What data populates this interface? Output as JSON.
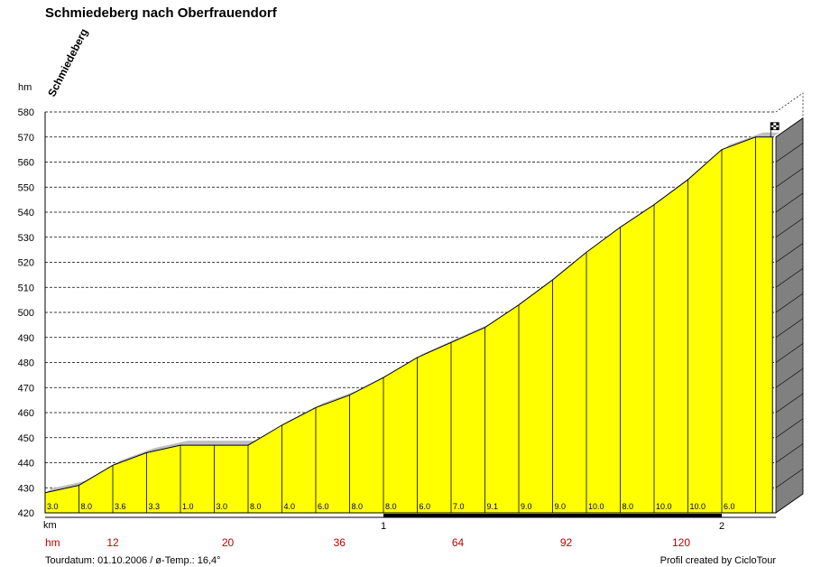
{
  "chart_data": {
    "type": "area",
    "title": "Schmiedeberg nach Oberfrauendorf",
    "start_label": "Schmiedeberg",
    "y_unit": "hm",
    "x_unit": "km",
    "ylim": [
      420,
      580
    ],
    "xlim": [
      0,
      2.16
    ],
    "y_ticks": [
      420,
      430,
      440,
      450,
      460,
      470,
      480,
      490,
      500,
      510,
      520,
      530,
      540,
      550,
      560,
      570,
      580
    ],
    "x_ticks": [
      {
        "value": 1,
        "label": "1"
      },
      {
        "value": 2,
        "label": "2"
      }
    ],
    "grid": true,
    "profile": {
      "x": [
        0,
        0.1,
        0.2,
        0.3,
        0.4,
        0.5,
        0.6,
        0.7,
        0.8,
        0.9,
        1.0,
        1.1,
        1.2,
        1.3,
        1.4,
        1.5,
        1.6,
        1.7,
        1.8,
        1.9,
        2.0,
        2.1,
        2.15
      ],
      "y": [
        428,
        431,
        439,
        444,
        447,
        447,
        447,
        455,
        462,
        467,
        474,
        482,
        488,
        494,
        503,
        513,
        524,
        534,
        543,
        553,
        565,
        570,
        570
      ]
    },
    "segments": [
      {
        "x0": 0.0,
        "x1": 0.1,
        "gradient": "3.0"
      },
      {
        "x0": 0.1,
        "x1": 0.2,
        "gradient": "8.0"
      },
      {
        "x0": 0.2,
        "x1": 0.3,
        "gradient": "3.6"
      },
      {
        "x0": 0.3,
        "x1": 0.4,
        "gradient": "3.3"
      },
      {
        "x0": 0.4,
        "x1": 0.5,
        "gradient": "1.0"
      },
      {
        "x0": 0.5,
        "x1": 0.6,
        "gradient": "3.0"
      },
      {
        "x0": 0.6,
        "x1": 0.7,
        "gradient": "8.0"
      },
      {
        "x0": 0.7,
        "x1": 0.8,
        "gradient": "4.0"
      },
      {
        "x0": 0.8,
        "x1": 0.9,
        "gradient": "6.0"
      },
      {
        "x0": 0.9,
        "x1": 1.0,
        "gradient": "8.0"
      },
      {
        "x0": 1.0,
        "x1": 1.1,
        "gradient": "8.0"
      },
      {
        "x0": 1.1,
        "x1": 1.2,
        "gradient": "6.0"
      },
      {
        "x0": 1.2,
        "x1": 1.3,
        "gradient": "7.0"
      },
      {
        "x0": 1.3,
        "x1": 1.4,
        "gradient": "9.1"
      },
      {
        "x0": 1.4,
        "x1": 1.5,
        "gradient": "9.0"
      },
      {
        "x0": 1.5,
        "x1": 1.6,
        "gradient": "9.0"
      },
      {
        "x0": 1.6,
        "x1": 1.7,
        "gradient": "10.0"
      },
      {
        "x0": 1.7,
        "x1": 1.8,
        "gradient": "8.0"
      },
      {
        "x0": 1.8,
        "x1": 1.9,
        "gradient": "10.0"
      },
      {
        "x0": 1.9,
        "x1": 2.0,
        "gradient": "10.0"
      },
      {
        "x0": 2.0,
        "x1": 2.1,
        "gradient": "6.0"
      },
      {
        "x0": 2.1,
        "x1": 2.15,
        "gradient": ""
      }
    ],
    "hm_row": {
      "label": "hm",
      "entries": [
        {
          "x": 0.2,
          "value": "12"
        },
        {
          "x": 0.54,
          "value": "20"
        },
        {
          "x": 0.87,
          "value": "36"
        },
        {
          "x": 1.22,
          "value": "64"
        },
        {
          "x": 1.54,
          "value": "92"
        },
        {
          "x": 1.88,
          "value": "120"
        }
      ]
    },
    "colors": {
      "fill": "#ffff00",
      "shadow": "#c0c0c0",
      "side": "#808080",
      "hm_text": "#c00000",
      "km_bar": "#000000"
    }
  },
  "footer": {
    "left": "Tourdatum: 01.10.2006  /  ø-Temp.: 16,4°",
    "right": "Profil created by CicloTour"
  }
}
